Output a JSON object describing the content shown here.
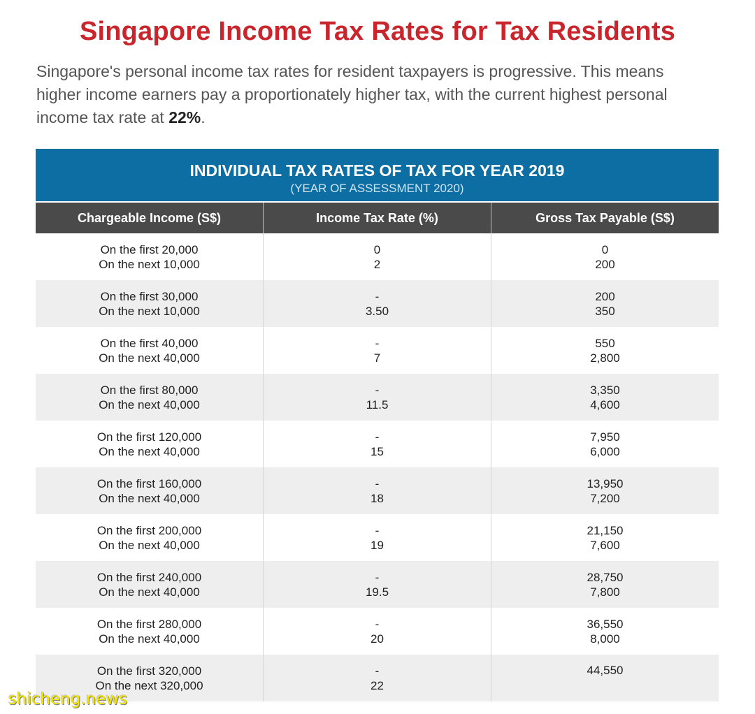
{
  "page_title": "Singapore Income Tax Rates for Tax Residents",
  "intro": {
    "line1": "Singapore's personal income tax rates for resident taxpayers is progressive. This means",
    "line2": "higher income earners pay a proportionately higher tax, with the current highest personal",
    "line3_pre": "income tax rate at ",
    "line3_bold": "22%",
    "line3_post": "."
  },
  "table": {
    "title": "INDIVIDUAL TAX RATES OF TAX FOR YEAR 2019",
    "subtitle": "(YEAR OF ASSESSMENT 2020)",
    "headers": [
      "Chargeable Income (S$)",
      "Income Tax Rate (%)",
      "Gross Tax Payable (S$)"
    ],
    "rows": [
      {
        "income": [
          "On the first 20,000",
          "On the next 10,000"
        ],
        "rate": [
          "0",
          "2"
        ],
        "payable": [
          "0",
          "200"
        ]
      },
      {
        "income": [
          "On the first 30,000",
          "On the next 10,000"
        ],
        "rate": [
          "-",
          "3.50"
        ],
        "payable": [
          "200",
          "350"
        ]
      },
      {
        "income": [
          "On the first 40,000",
          "On the next 40,000"
        ],
        "rate": [
          "-",
          "7"
        ],
        "payable": [
          "550",
          "2,800"
        ]
      },
      {
        "income": [
          "On the first 80,000",
          "On the next 40,000"
        ],
        "rate": [
          "-",
          "11.5"
        ],
        "payable": [
          "3,350",
          "4,600"
        ]
      },
      {
        "income": [
          "On the first 120,000",
          "On the next 40,000"
        ],
        "rate": [
          "-",
          "15"
        ],
        "payable": [
          "7,950",
          "6,000"
        ]
      },
      {
        "income": [
          "On the first 160,000",
          "On the next 40,000"
        ],
        "rate": [
          "-",
          "18"
        ],
        "payable": [
          "13,950",
          "7,200"
        ]
      },
      {
        "income": [
          "On the first 200,000",
          "On the next 40,000"
        ],
        "rate": [
          "-",
          "19"
        ],
        "payable": [
          "21,150",
          "7,600"
        ]
      },
      {
        "income": [
          "On the first 240,000",
          "On the next 40,000"
        ],
        "rate": [
          "-",
          "19.5"
        ],
        "payable": [
          "28,750",
          "7,800"
        ]
      },
      {
        "income": [
          "On the first 280,000",
          "On the next 40,000"
        ],
        "rate": [
          "-",
          "20"
        ],
        "payable": [
          "36,550",
          "8,000"
        ]
      },
      {
        "income": [
          "On the first 320,000",
          "On the next 320,000"
        ],
        "rate": [
          "-",
          "22"
        ],
        "payable": [
          "44,550"
        ]
      }
    ]
  },
  "watermark": "shicheng.news",
  "colors": {
    "title_red": "#c8262c",
    "banner_blue": "#0d6ea3",
    "header_gray": "#4a4a4a",
    "watermark_yellow": "#f2e600"
  }
}
